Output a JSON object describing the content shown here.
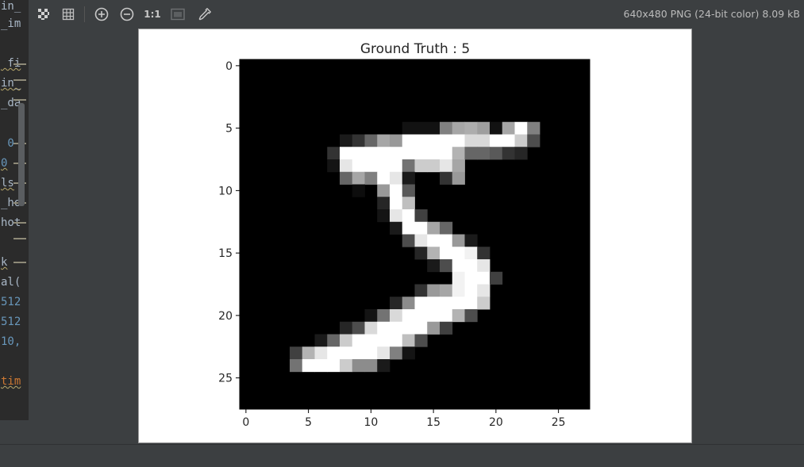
{
  "editor": {
    "lines": [
      {
        "text": "in_",
        "color": "#a9b7c6",
        "top": 0,
        "squiggle": false
      },
      {
        "text": "_im",
        "color": "#a9b7c6",
        "top": 22,
        "squiggle": false
      },
      {
        "text": " fi",
        "color": "#a9b7c6",
        "top": 72,
        "squiggle": true
      },
      {
        "text": "in_",
        "color": "#a9b7c6",
        "top": 97,
        "squiggle": true
      },
      {
        "text": "_da",
        "color": "#a9b7c6",
        "top": 122,
        "squiggle": false
      },
      {
        "text": " 0",
        "color": "#6897bb",
        "top": 173,
        "squiggle": false
      },
      {
        "text": "0",
        "color": "#6897bb",
        "top": 198,
        "squiggle": true
      },
      {
        "text": "ls",
        "color": "#a9b7c6",
        "top": 223,
        "squiggle": true
      },
      {
        "text": "_ho",
        "color": "#a9b7c6",
        "top": 248,
        "squiggle": false
      },
      {
        "text": "hot",
        "color": "#a9b7c6",
        "top": 273,
        "squiggle": false
      },
      {
        "text": "k",
        "color": "#a9b7c6",
        "top": 323,
        "squiggle": true
      },
      {
        "text": "al(",
        "color": "#a9b7c6",
        "top": 348,
        "squiggle": false
      },
      {
        "text": "512",
        "color": "#6897bb",
        "top": 373,
        "squiggle": false
      },
      {
        "text": "512",
        "color": "#6897bb",
        "top": 398,
        "squiggle": false
      },
      {
        "text": "10,",
        "color": "#6897bb",
        "top": 423,
        "squiggle": false
      },
      {
        "text": "tim",
        "color": "#cc7832",
        "top": 473,
        "squiggle": true
      }
    ]
  },
  "toolbar": {
    "buttons": [
      {
        "name": "chessboard-toggle-button",
        "icon": "chessboard-icon",
        "active": true
      },
      {
        "name": "grid-toggle-button",
        "icon": "grid-icon",
        "active": false
      },
      {
        "name": "zoom-in-button",
        "icon": "zoom-in-icon",
        "active": false
      },
      {
        "name": "zoom-out-button",
        "icon": "zoom-out-icon",
        "active": false
      },
      {
        "name": "actual-size-button",
        "icon": "actual-size-icon",
        "label": "1:1",
        "active": false
      },
      {
        "name": "fit-window-button",
        "icon": "fit-window-icon",
        "active": false
      },
      {
        "name": "color-picker-button",
        "icon": "eyedropper-icon",
        "active": false
      }
    ],
    "image_info": "640x480 PNG (24-bit color) 8.09 kB"
  },
  "chart_data": {
    "type": "heatmap",
    "title": "Ground Truth : 5",
    "colormap": "gray",
    "xticks": [
      0,
      5,
      10,
      15,
      20,
      25
    ],
    "yticks": [
      0,
      5,
      10,
      15,
      20,
      25
    ],
    "xlim": [
      -0.5,
      27.5
    ],
    "ylim": [
      27.5,
      -0.5
    ],
    "xlabel": "",
    "ylabel": "",
    "width": 28,
    "height": 28,
    "pixels": [
      [
        5,
        13,
        18,
        0.07
      ],
      [
        5,
        14,
        18,
        0.07
      ],
      [
        5,
        15,
        18,
        0.07
      ],
      [
        5,
        16,
        18,
        0.5
      ],
      [
        5,
        17,
        18,
        0.65
      ],
      [
        5,
        18,
        18,
        0.68
      ],
      [
        5,
        19,
        18,
        0.62
      ],
      [
        5,
        20,
        18,
        0.07
      ],
      [
        5,
        21,
        18,
        0.65
      ],
      [
        5,
        22,
        18,
        1
      ],
      [
        5,
        23,
        18,
        0.5
      ],
      [
        6,
        8,
        18,
        0.1
      ],
      [
        6,
        9,
        18,
        0.2
      ],
      [
        6,
        10,
        18,
        0.4
      ],
      [
        6,
        11,
        18,
        0.65
      ],
      [
        6,
        12,
        18,
        0.6
      ],
      [
        6,
        13,
        18,
        1
      ],
      [
        6,
        14,
        18,
        1
      ],
      [
        6,
        15,
        18,
        1
      ],
      [
        6,
        16,
        18,
        1
      ],
      [
        6,
        17,
        18,
        1
      ],
      [
        6,
        18,
        18,
        0.85
      ],
      [
        6,
        19,
        18,
        0.85
      ],
      [
        6,
        20,
        18,
        1
      ],
      [
        6,
        21,
        18,
        1
      ],
      [
        6,
        22,
        18,
        0.8
      ],
      [
        6,
        23,
        18,
        0.3
      ],
      [
        7,
        7,
        18,
        0.2
      ],
      [
        7,
        8,
        18,
        1
      ],
      [
        7,
        9,
        18,
        1
      ],
      [
        7,
        10,
        18,
        1
      ],
      [
        7,
        11,
        18,
        1
      ],
      [
        7,
        12,
        18,
        1
      ],
      [
        7,
        13,
        18,
        1
      ],
      [
        7,
        14,
        18,
        1
      ],
      [
        7,
        15,
        18,
        1
      ],
      [
        7,
        16,
        18,
        1
      ],
      [
        7,
        17,
        18,
        0.7
      ],
      [
        7,
        18,
        18,
        0.4
      ],
      [
        7,
        19,
        18,
        0.4
      ],
      [
        7,
        20,
        18,
        0.35
      ],
      [
        7,
        21,
        18,
        0.2
      ],
      [
        7,
        22,
        18,
        0.15
      ],
      [
        8,
        7,
        18,
        0.08
      ],
      [
        8,
        8,
        18,
        0.9
      ],
      [
        8,
        9,
        18,
        1
      ],
      [
        8,
        10,
        18,
        1
      ],
      [
        8,
        11,
        18,
        1
      ],
      [
        8,
        12,
        18,
        1
      ],
      [
        8,
        13,
        18,
        0.45
      ],
      [
        8,
        14,
        18,
        0.8
      ],
      [
        8,
        15,
        18,
        0.8
      ],
      [
        8,
        16,
        18,
        0.9
      ],
      [
        8,
        17,
        18,
        0.65
      ],
      [
        9,
        8,
        18,
        0.4
      ],
      [
        9,
        9,
        18,
        0.65
      ],
      [
        9,
        10,
        18,
        0.5
      ],
      [
        9,
        11,
        18,
        1
      ],
      [
        9,
        12,
        18,
        0.9
      ],
      [
        9,
        13,
        18,
        0.1
      ],
      [
        9,
        16,
        18,
        0.2
      ],
      [
        9,
        17,
        18,
        0.6
      ],
      [
        10,
        9,
        18,
        0.05
      ],
      [
        10,
        11,
        18,
        0.6
      ],
      [
        10,
        12,
        18,
        1
      ],
      [
        10,
        13,
        18,
        0.35
      ],
      [
        11,
        11,
        18,
        0.15
      ],
      [
        11,
        12,
        18,
        1
      ],
      [
        11,
        13,
        18,
        0.75
      ],
      [
        12,
        11,
        18,
        0.08
      ],
      [
        12,
        12,
        18,
        0.9
      ],
      [
        12,
        13,
        18,
        1
      ],
      [
        12,
        14,
        18,
        0.25
      ],
      [
        13,
        12,
        18,
        0.1
      ],
      [
        13,
        13,
        18,
        1
      ],
      [
        13,
        14,
        18,
        1
      ],
      [
        13,
        15,
        18,
        0.65
      ],
      [
        13,
        16,
        18,
        0.4
      ],
      [
        14,
        13,
        18,
        0.3
      ],
      [
        14,
        14,
        18,
        0.9
      ],
      [
        14,
        15,
        18,
        1
      ],
      [
        14,
        16,
        18,
        1
      ],
      [
        14,
        17,
        18,
        0.6
      ],
      [
        14,
        18,
        18,
        0.1
      ],
      [
        15,
        14,
        18,
        0.15
      ],
      [
        15,
        15,
        18,
        0.7
      ],
      [
        15,
        16,
        18,
        1
      ],
      [
        15,
        17,
        18,
        1
      ],
      [
        15,
        18,
        18,
        0.95
      ],
      [
        15,
        19,
        18,
        0.2
      ],
      [
        16,
        15,
        18,
        0.1
      ],
      [
        16,
        16,
        18,
        0.3
      ],
      [
        16,
        17,
        18,
        1
      ],
      [
        16,
        18,
        18,
        1
      ],
      [
        16,
        19,
        18,
        0.9
      ],
      [
        17,
        17,
        18,
        0.95
      ],
      [
        17,
        18,
        18,
        1
      ],
      [
        17,
        19,
        18,
        1
      ],
      [
        17,
        20,
        18,
        0.25
      ],
      [
        18,
        14,
        18,
        0.2
      ],
      [
        18,
        15,
        18,
        0.6
      ],
      [
        18,
        16,
        18,
        0.65
      ],
      [
        18,
        17,
        18,
        0.95
      ],
      [
        18,
        18,
        18,
        1
      ],
      [
        18,
        19,
        18,
        0.9
      ],
      [
        19,
        12,
        18,
        0.15
      ],
      [
        19,
        13,
        18,
        0.55
      ],
      [
        19,
        14,
        18,
        1
      ],
      [
        19,
        15,
        18,
        1
      ],
      [
        19,
        16,
        18,
        1
      ],
      [
        19,
        17,
        18,
        1
      ],
      [
        19,
        18,
        18,
        1
      ],
      [
        19,
        19,
        18,
        0.8
      ],
      [
        20,
        10,
        18,
        0.08
      ],
      [
        20,
        11,
        18,
        0.45
      ],
      [
        20,
        12,
        18,
        0.85
      ],
      [
        20,
        13,
        18,
        1
      ],
      [
        20,
        14,
        18,
        1
      ],
      [
        20,
        15,
        18,
        1
      ],
      [
        20,
        16,
        18,
        1
      ],
      [
        20,
        17,
        18,
        0.7
      ],
      [
        20,
        18,
        18,
        0.3
      ],
      [
        21,
        8,
        18,
        0.15
      ],
      [
        21,
        9,
        18,
        0.3
      ],
      [
        21,
        10,
        18,
        0.85
      ],
      [
        21,
        11,
        18,
        1
      ],
      [
        21,
        12,
        18,
        1
      ],
      [
        21,
        13,
        18,
        1
      ],
      [
        21,
        14,
        18,
        1
      ],
      [
        21,
        15,
        18,
        0.6
      ],
      [
        21,
        16,
        18,
        0.25
      ],
      [
        22,
        6,
        18,
        0.1
      ],
      [
        22,
        7,
        18,
        0.4
      ],
      [
        22,
        8,
        18,
        0.8
      ],
      [
        22,
        9,
        18,
        1
      ],
      [
        22,
        10,
        18,
        1
      ],
      [
        22,
        11,
        18,
        1
      ],
      [
        22,
        12,
        18,
        1
      ],
      [
        22,
        13,
        18,
        0.75
      ],
      [
        22,
        14,
        18,
        0.3
      ],
      [
        23,
        4,
        18,
        0.25
      ],
      [
        23,
        5,
        18,
        0.7
      ],
      [
        23,
        6,
        18,
        0.9
      ],
      [
        23,
        7,
        18,
        1
      ],
      [
        23,
        8,
        18,
        1
      ],
      [
        23,
        9,
        18,
        1
      ],
      [
        23,
        10,
        18,
        1
      ],
      [
        23,
        11,
        18,
        0.9
      ],
      [
        23,
        12,
        18,
        0.5
      ],
      [
        23,
        13,
        18,
        0.08
      ],
      [
        24,
        4,
        18,
        0.45
      ],
      [
        24,
        5,
        18,
        1
      ],
      [
        24,
        6,
        18,
        1
      ],
      [
        24,
        7,
        18,
        1
      ],
      [
        24,
        8,
        18,
        0.8
      ],
      [
        24,
        9,
        18,
        0.55
      ],
      [
        24,
        10,
        18,
        0.55
      ],
      [
        24,
        11,
        18,
        0.1
      ]
    ]
  }
}
